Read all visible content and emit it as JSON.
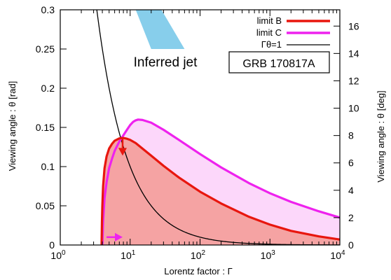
{
  "chart_data": {
    "type": "line",
    "xlabel": "Lorentz factor : Γ",
    "ylabel": "Viewing angle : θ [rad]",
    "y2label": "Viewing angle : θ [deg]",
    "x_scale": "log",
    "xlim": [
      1,
      10000
    ],
    "ylim": [
      0,
      0.3
    ],
    "y2lim": [
      0,
      17.19
    ],
    "x_ticks": [
      {
        "value": 1,
        "base": "10",
        "exp": "0"
      },
      {
        "value": 10,
        "base": "10",
        "exp": "1"
      },
      {
        "value": 100,
        "base": "10",
        "exp": "2"
      },
      {
        "value": 1000,
        "base": "10",
        "exp": "3"
      },
      {
        "value": 10000,
        "base": "10",
        "exp": "4"
      }
    ],
    "y_ticks": [
      0,
      0.05,
      0.1,
      0.15,
      0.2,
      0.25,
      0.3
    ],
    "y_tick_labels": [
      "0",
      "0.05",
      "0.1",
      "0.15",
      "0.2",
      "0.25",
      "0.3"
    ],
    "y2_ticks": [
      0,
      2,
      4,
      6,
      8,
      10,
      12,
      14,
      16
    ],
    "y2_tick_labels": [
      "0",
      "2",
      "4",
      "6",
      "8",
      "10",
      "12",
      "14",
      "16"
    ],
    "grid": false,
    "legend_position": "top-right",
    "series": [
      {
        "name": "limit B",
        "color": "#e8160e",
        "fill": "#f5a3a3",
        "x": [
          3.9,
          3.95,
          4.0,
          4.1,
          4.3,
          4.6,
          5.0,
          5.5,
          6.0,
          7.0,
          8.0,
          9.0,
          10,
          12,
          15,
          20,
          30,
          50,
          100,
          200,
          500,
          1000,
          2000,
          5000,
          10000
        ],
        "y": [
          0.0,
          0.03,
          0.05,
          0.075,
          0.098,
          0.113,
          0.123,
          0.129,
          0.133,
          0.136,
          0.1365,
          0.1355,
          0.134,
          0.13,
          0.123,
          0.114,
          0.101,
          0.086,
          0.068,
          0.053,
          0.036,
          0.026,
          0.018,
          0.011,
          0.007
        ]
      },
      {
        "name": "limit C",
        "color": "#ee22ee",
        "fill": "#fcd7fa",
        "x": [
          4.0,
          4.1,
          4.3,
          4.6,
          5.0,
          5.5,
          6.0,
          7.0,
          8.0,
          9.0,
          10,
          11,
          12,
          13,
          15,
          20,
          30,
          50,
          100,
          200,
          500,
          1000,
          2000,
          5000,
          10000
        ],
        "y": [
          0.0,
          0.03,
          0.06,
          0.08,
          0.098,
          0.11,
          0.12,
          0.132,
          0.14,
          0.147,
          0.153,
          0.157,
          0.159,
          0.16,
          0.1595,
          0.156,
          0.147,
          0.134,
          0.116,
          0.099,
          0.079,
          0.066,
          0.055,
          0.043,
          0.035
        ]
      },
      {
        "name": "Γθ=1",
        "color": "#000000",
        "function": "1/x"
      }
    ],
    "annotations": [
      {
        "text": "Inferred jet",
        "kind": "band",
        "color": "#87ceeb",
        "x_bottom": [
          20,
          60
        ],
        "x_top": [
          12,
          28
        ],
        "y_range": [
          0.25,
          0.3
        ]
      },
      {
        "text": "GRB 170817A",
        "kind": "boxed-label"
      },
      {
        "kind": "arrow",
        "color": "#e8160e",
        "from": [
          7.8,
          0.136
        ],
        "to": [
          7.8,
          0.114
        ]
      },
      {
        "kind": "arrow",
        "color": "#ee22ee",
        "from": [
          4.6,
          0.01
        ],
        "to": [
          7.8,
          0.01
        ]
      }
    ]
  }
}
